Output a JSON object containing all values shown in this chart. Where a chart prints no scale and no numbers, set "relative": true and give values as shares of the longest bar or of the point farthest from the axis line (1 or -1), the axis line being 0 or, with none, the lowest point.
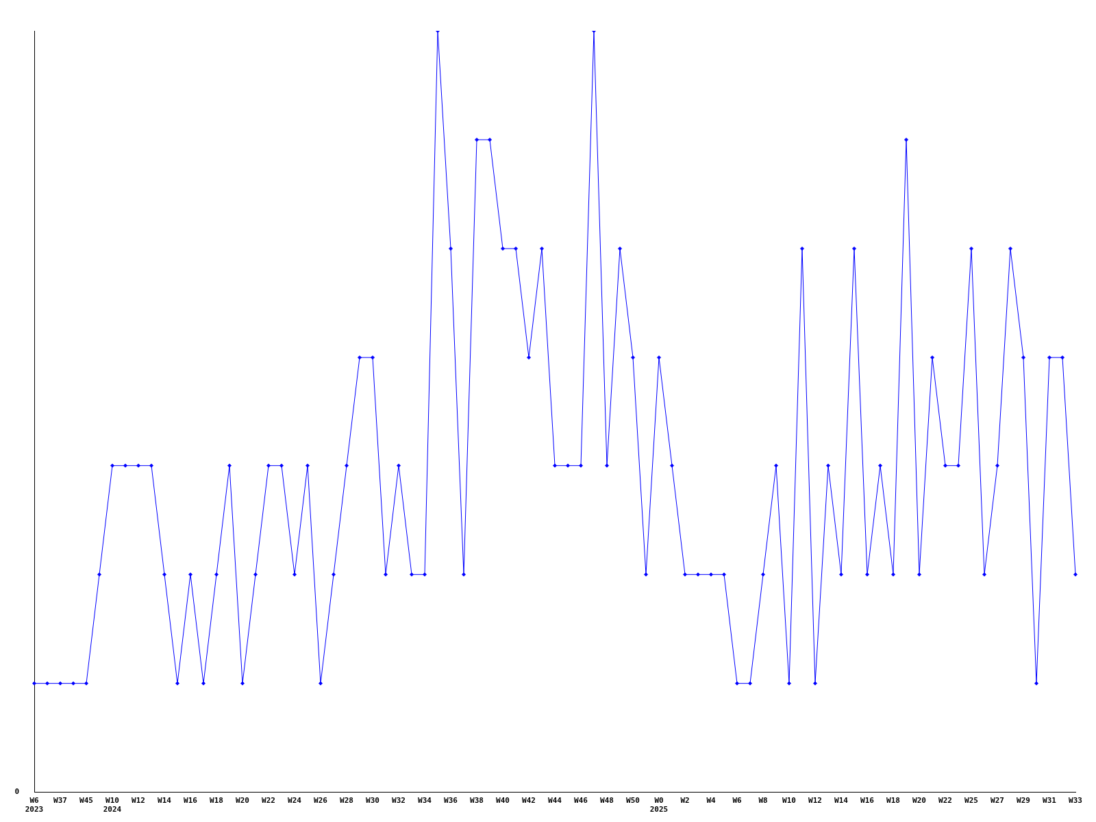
{
  "chart_data": {
    "type": "line",
    "relative": true,
    "color": "#0000ff",
    "marker": "diamond",
    "grid": false,
    "legend": false,
    "annotations": [
      "0"
    ],
    "categories": [
      "W6\n2023",
      null,
      "W37",
      null,
      "W45",
      null,
      "W10\n2024",
      null,
      "W12",
      null,
      "W14",
      null,
      "W16",
      null,
      "W18",
      null,
      "W20",
      null,
      "W22",
      null,
      "W24",
      null,
      "W26",
      null,
      "W28",
      null,
      "W30",
      null,
      "W32",
      null,
      "W34",
      null,
      "W36",
      null,
      "W38",
      null,
      "W40",
      null,
      "W42",
      null,
      "W44",
      null,
      "W46",
      null,
      "W48",
      null,
      "W50",
      null,
      "W0\n2025",
      null,
      "W2",
      null,
      "W4",
      null,
      "W6",
      null,
      "W8",
      null,
      "W10",
      null,
      "W12",
      null,
      "W14",
      null,
      "W16",
      null,
      "W18",
      null,
      "W20",
      null,
      "W22",
      null,
      "W25",
      null,
      "W27",
      null,
      "W29",
      null,
      "W31",
      null,
      "W33"
    ],
    "values": [
      0.143,
      0.143,
      0.143,
      0.143,
      0.143,
      0.286,
      0.429,
      0.429,
      0.429,
      0.429,
      0.286,
      0.143,
      0.286,
      0.143,
      0.286,
      0.429,
      0.143,
      0.286,
      0.429,
      0.429,
      0.286,
      0.429,
      0.143,
      0.286,
      0.429,
      0.571,
      0.571,
      0.286,
      0.429,
      0.286,
      0.286,
      1,
      0.714,
      0.286,
      0.857,
      0.857,
      0.714,
      0.714,
      0.571,
      0.714,
      0.429,
      0.429,
      0.429,
      1,
      0.429,
      0.714,
      0.571,
      0.286,
      0.571,
      0.429,
      0.286,
      0.286,
      0.286,
      0.286,
      0.143,
      0.143,
      0.286,
      0.429,
      0.143,
      0.714,
      0.143,
      0.429,
      0.286,
      0.714,
      0.286,
      0.429,
      0.286,
      0.857,
      0.286,
      0.571,
      0.429,
      0.429,
      0.714,
      0.286,
      0.429,
      0.714,
      0.571,
      0.143,
      0.571,
      0.571,
      0.286
    ]
  }
}
